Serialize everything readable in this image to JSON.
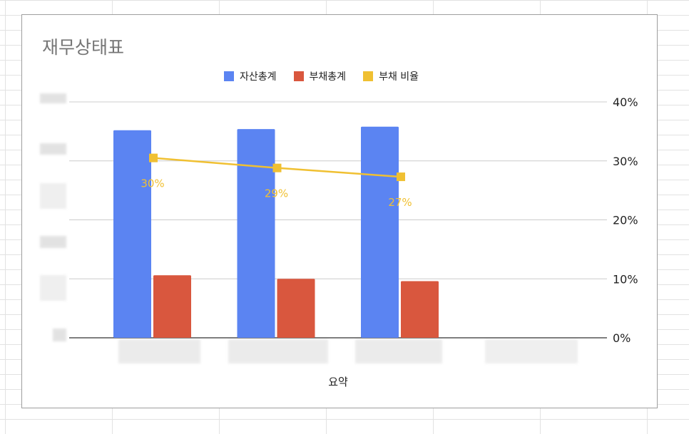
{
  "chart_data": {
    "type": "bar",
    "title": "재무상태표",
    "xlabel": "요약",
    "ylabel": "",
    "categories": [
      "",
      "",
      "",
      ""
    ],
    "series": [
      {
        "name": "자산총계",
        "type": "bar",
        "axis": "left",
        "color": "#5b84f2",
        "values": [
          88,
          88.5,
          89.5,
          null
        ]
      },
      {
        "name": "부채총계",
        "type": "bar",
        "axis": "left",
        "color": "#d9573e",
        "values": [
          26.5,
          25,
          24,
          null
        ]
      },
      {
        "name": "부채 비율",
        "type": "line",
        "axis": "right",
        "color": "#f0c032",
        "values": [
          30.5,
          28.8,
          27.3,
          null
        ],
        "data_labels": [
          "30%",
          "29%",
          "27%",
          null
        ]
      }
    ],
    "y_left_range": [
      0,
      100
    ],
    "y_left_ticks_redacted": true,
    "y_right_ticks": [
      "0%",
      "10%",
      "20%",
      "30%",
      "40%"
    ],
    "y_right_range": [
      0,
      40
    ],
    "grid": true,
    "legend_position": "top"
  }
}
